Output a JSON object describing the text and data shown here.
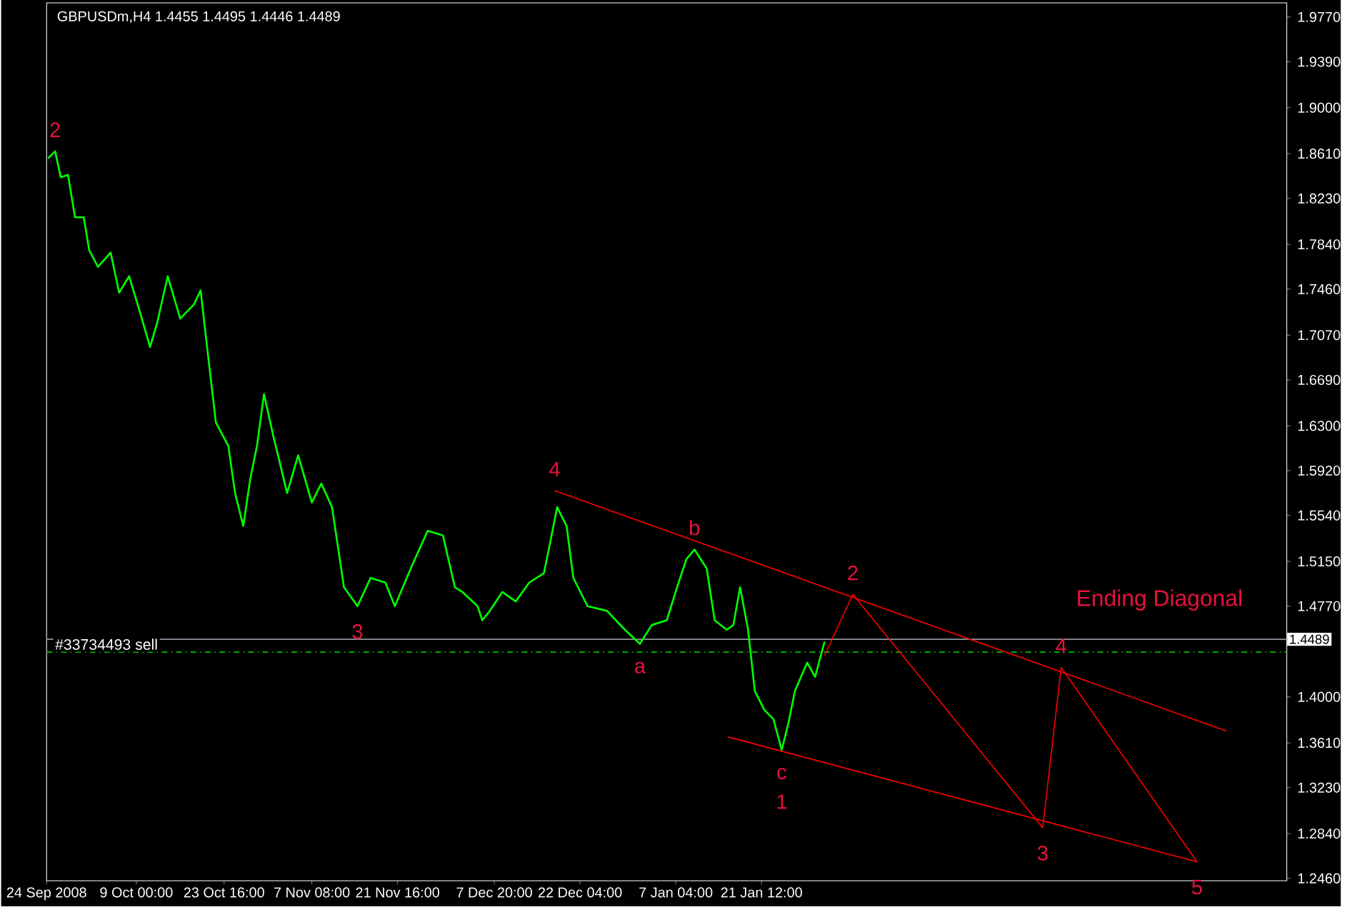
{
  "chart_data": {
    "type": "line",
    "title": "GBPUSDm,H4  1.4455 1.4495 1.4446 1.4489",
    "xlim": [
      "2008-09-24",
      "2009-04-19T07:00"
    ],
    "xticks": [
      {
        "value": "2008-09-24",
        "label": "24 Sep 2008"
      },
      {
        "value": "2008-10-09T00:00",
        "label": "9 Oct 00:00"
      },
      {
        "value": "2008-10-23T16:00",
        "label": "23 Oct 16:00"
      },
      {
        "value": "2008-11-07T08:00",
        "label": "7 Nov 08:00"
      },
      {
        "value": "2008-11-21T16:00",
        "label": "21 Nov 16:00"
      },
      {
        "value": "2008-12-07T20:00",
        "label": "7 Dec 20:00"
      },
      {
        "value": "2008-12-22T04:00",
        "label": "22 Dec 04:00"
      },
      {
        "value": "2009-01-07T04:00",
        "label": "7 Jan 04:00"
      },
      {
        "value": "2009-01-21T12:00",
        "label": "21 Jan 12:00"
      }
    ],
    "ylim": [
      1.244,
      1.989
    ],
    "yticks": [
      {
        "value": 1.977,
        "label": "1.9770"
      },
      {
        "value": 1.939,
        "label": "1.9390"
      },
      {
        "value": 1.9,
        "label": "1.9000"
      },
      {
        "value": 1.861,
        "label": "1.8610"
      },
      {
        "value": 1.823,
        "label": "1.8230"
      },
      {
        "value": 1.784,
        "label": "1.7840"
      },
      {
        "value": 1.746,
        "label": "1.7460"
      },
      {
        "value": 1.707,
        "label": "1.7070"
      },
      {
        "value": 1.669,
        "label": "1.6690"
      },
      {
        "value": 1.63,
        "label": "1.6300"
      },
      {
        "value": 1.592,
        "label": "1.5920"
      },
      {
        "value": 1.554,
        "label": "1.5540"
      },
      {
        "value": 1.515,
        "label": "1.5150"
      },
      {
        "value": 1.477,
        "label": "1.4770"
      },
      {
        "value": 1.4,
        "label": "1.4000"
      },
      {
        "value": 1.361,
        "label": "1.3610"
      },
      {
        "value": 1.323,
        "label": "1.3230"
      },
      {
        "value": 1.284,
        "label": "1.2840"
      },
      {
        "value": 1.246,
        "label": "1.2460"
      }
    ],
    "grid": false,
    "marker": "none",
    "line_style": "solid",
    "series": [
      {
        "color": "#00ff00",
        "x": [
          "2008-09-24T06:00",
          "2008-09-25T10:00",
          "2008-09-26T09:00",
          "2008-09-27T14:00",
          "2008-09-28T18:00",
          "2008-09-30T05:00",
          "2008-10-01T03:00",
          "2008-10-02T14:00",
          "2008-10-04T17:00",
          "2008-10-06T03:00",
          "2008-10-07T19:00",
          "2008-10-09T11:00",
          "2008-10-11T07:00",
          "2008-10-12T11:00",
          "2008-10-14T06:00",
          "2008-10-16T08:00",
          "2008-10-18T15:00",
          "2008-10-19T18:00",
          "2008-10-20T11:00",
          "2008-10-22T07:00",
          "2008-10-24T09:00",
          "2008-10-25T12:00",
          "2008-10-26T21:00",
          "2008-10-28T01:00",
          "2008-10-29T04:00",
          "2008-10-30T08:00",
          "2008-10-31T22:00",
          "2008-11-03T05:00",
          "2008-11-05T01:00",
          "2008-11-07T08:00",
          "2008-11-08T22:00",
          "2008-11-10T17:00",
          "2008-11-12T17:00",
          "2008-11-14T23:00",
          "2008-11-17T04:00",
          "2008-11-19T15:00",
          "2008-11-21T05:00",
          "2008-11-24T05:00",
          "2008-11-26T17:00",
          "2008-11-29T06:00",
          "2008-12-01T06:00",
          "2008-12-02T12:00",
          "2008-12-05T01:00",
          "2008-12-05T20:00",
          "2008-12-07T02:00",
          "2008-12-09T04:00",
          "2008-12-11T10:00",
          "2008-12-13T16:00",
          "2008-12-16T03:00",
          "2008-12-17T06:00",
          "2008-12-18T08:00",
          "2008-12-19T22:00",
          "2008-12-21T01:00",
          "2008-12-23T10:00",
          "2008-12-26T16:00",
          "2008-12-29T16:00",
          "2009-01-01T04:00",
          "2009-01-03T04:00",
          "2009-01-05T16:00",
          "2009-01-07T09:00",
          "2009-01-08T23:00",
          "2009-01-10T07:00",
          "2009-01-12T08:00",
          "2009-01-13T16:00",
          "2009-01-15T16:00",
          "2009-01-16T19:00",
          "2009-01-17T22:00",
          "2009-01-19T06:00",
          "2009-01-20T09:00",
          "2009-01-21T23:00",
          "2009-01-23T12:00",
          "2009-01-24T21:00",
          "2009-01-25T23:00",
          "2009-01-27T02:00",
          "2009-01-29T03:00",
          "2009-01-30T11:00",
          "2009-02-01T01:00"
        ],
        "values": [
          1.857,
          1.863,
          1.841,
          1.843,
          1.807,
          1.807,
          1.779,
          1.765,
          1.777,
          1.743,
          1.757,
          1.729,
          1.697,
          1.717,
          1.757,
          1.721,
          1.733,
          1.745,
          1.713,
          1.633,
          1.613,
          1.573,
          1.545,
          1.585,
          1.613,
          1.657,
          1.621,
          1.573,
          1.605,
          1.565,
          1.581,
          1.561,
          1.493,
          1.477,
          1.501,
          1.497,
          1.477,
          1.513,
          1.541,
          1.537,
          1.493,
          1.489,
          1.477,
          1.465,
          1.473,
          1.489,
          1.481,
          1.497,
          1.505,
          1.533,
          1.561,
          1.545,
          1.501,
          1.477,
          1.473,
          1.457,
          1.445,
          1.461,
          1.465,
          1.493,
          1.517,
          1.525,
          1.509,
          1.465,
          1.457,
          1.461,
          1.493,
          1.457,
          1.405,
          1.389,
          1.381,
          1.355,
          1.377,
          1.405,
          1.429,
          1.417,
          1.447
        ]
      },
      {
        "color": "#ff0000",
        "x": [
          "2008-12-17T22:00",
          "2009-04-09T05:00"
        ],
        "values": [
          1.575,
          1.371
        ]
      },
      {
        "color": "#ff0000",
        "x": [
          "2009-01-15T22:00",
          "2009-04-04T07:00"
        ],
        "values": [
          1.366,
          1.26
        ]
      },
      {
        "color": "#ff0000",
        "x": [
          "2009-02-01T01:00",
          "2009-02-05T18:00",
          "2009-03-09T12:00",
          "2009-03-12T14:00",
          "2009-04-04T07:00"
        ],
        "values": [
          1.435,
          1.487,
          1.289,
          1.425,
          1.26
        ]
      }
    ],
    "ref_lines": [
      {
        "axis": "y",
        "value": 1.4489,
        "label": "1.4489",
        "color": "#8c96a0",
        "line_style": "solid"
      },
      {
        "axis": "y",
        "value": 1.438,
        "label": "#33734493 sell",
        "color": "#00c000",
        "line_style": "dashed"
      }
    ],
    "annotations": [
      {
        "text": "2",
        "x": "2008-09-25T10:00",
        "y": 1.863
      },
      {
        "text": "3",
        "x": "2008-11-14T23:00",
        "y": 1.477
      },
      {
        "text": "4",
        "x": "2008-12-17T22:00",
        "y": 1.575
      },
      {
        "text": "a",
        "x": "2009-01-01T04:00",
        "y": 1.445
      },
      {
        "text": "b",
        "x": "2009-01-10T07:00",
        "y": 1.525
      },
      {
        "text": "c",
        "x": "2009-01-24T21:00",
        "y": 1.355
      },
      {
        "text": "1",
        "x": "2009-01-24T21:00",
        "y": 1.355
      },
      {
        "text": "2",
        "x": "2009-02-05T18:00",
        "y": 1.487
      },
      {
        "text": "3",
        "x": "2009-03-09T12:00",
        "y": 1.289
      },
      {
        "text": "4",
        "x": "2009-03-12T14:00",
        "y": 1.425
      },
      {
        "text": "5",
        "x": "2009-04-04T07:00",
        "y": 1.26
      },
      "Ending Diagonal"
    ]
  }
}
